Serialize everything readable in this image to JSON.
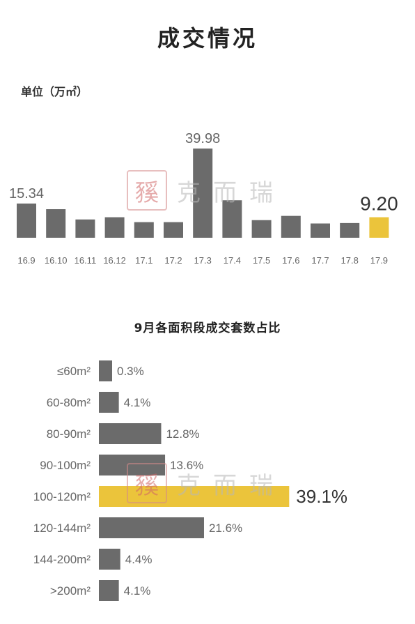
{
  "page": {
    "title": "成交情况",
    "unit_label": "单位（万㎡）",
    "subtitle": "9月各面积段成交套数占比"
  },
  "watermark": {
    "seal_char": "豯",
    "text": "克而瑞"
  },
  "colors": {
    "bar": "#6b6b6b",
    "highlight": "#ebc43b",
    "label": "#666666",
    "text": "#333333"
  },
  "chart_data": [
    {
      "type": "bar",
      "categories": [
        "16.9",
        "16.10",
        "16.11",
        "16.12",
        "17.1",
        "17.2",
        "17.3",
        "17.4",
        "17.5",
        "17.6",
        "17.7",
        "17.8",
        "17.9"
      ],
      "values": [
        15.34,
        12.8,
        8.2,
        9.2,
        7.0,
        7.0,
        39.98,
        16.8,
        7.9,
        9.8,
        6.4,
        6.6,
        9.2
      ],
      "data_labels": {
        "0": "15.34",
        "6": "39.98",
        "12": "9.20"
      },
      "highlight_index": 12,
      "ylim": [
        0,
        40
      ]
    },
    {
      "type": "bar",
      "orientation": "horizontal",
      "categories": [
        "≤60m²",
        "60-80m²",
        "80-90m²",
        "90-100m²",
        "100-120m²",
        "120-144m²",
        "144-200m²",
        ">200m²"
      ],
      "values": [
        0.3,
        4.1,
        12.8,
        13.6,
        39.1,
        21.6,
        4.4,
        4.1
      ],
      "labels": [
        "0.3%",
        "4.1%",
        "12.8%",
        "13.6%",
        "39.1%",
        "21.6%",
        "4.4%",
        "4.1%"
      ],
      "highlight_index": 4
    }
  ]
}
